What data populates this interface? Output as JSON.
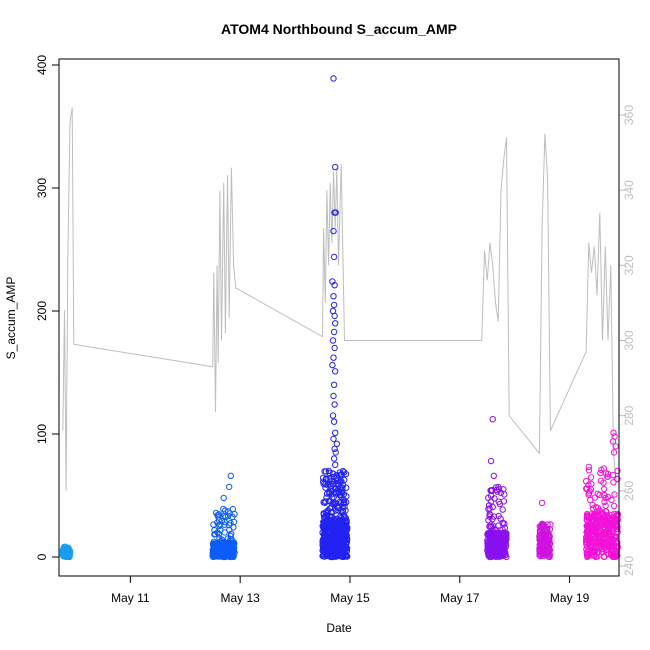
{
  "chart_data": {
    "type": "scatter",
    "title": "ATOM4 Northbound S_accum_AMP",
    "xlabel": "Date",
    "ylabel": "S_accum_AMP",
    "x_unit": "days in May",
    "xlim": [
      9.7,
      19.9
    ],
    "ylim": [
      0,
      400
    ],
    "y2lim": [
      240,
      360
    ],
    "x_ticks": [
      {
        "value": 11,
        "label": "May 11"
      },
      {
        "value": 13,
        "label": "May 13"
      },
      {
        "value": 15,
        "label": "May 15"
      },
      {
        "value": 17,
        "label": "May 17"
      },
      {
        "value": 19,
        "label": "May 19"
      }
    ],
    "y_ticks": [
      0,
      100,
      200,
      300,
      400
    ],
    "y2_ticks": [
      240,
      260,
      280,
      300,
      320,
      340,
      360
    ],
    "grid": false,
    "legend": "none",
    "marker": "open-circle",
    "secondary_line_color": "#bebebe",
    "scatter_clusters": [
      {
        "x_start": 9.77,
        "x_end": 9.9,
        "y_typical_max": 6,
        "y_max": 9,
        "color": "#1a9cf0",
        "density": 140,
        "outliers": []
      },
      {
        "x_start": 12.5,
        "x_end": 12.9,
        "y_typical_max": 12,
        "y_max": 40,
        "color": "#0d5cf7",
        "density": 300,
        "outliers": [
          [
            12.7,
            48
          ],
          [
            12.8,
            57
          ],
          [
            12.83,
            66
          ]
        ]
      },
      {
        "x_start": 14.5,
        "x_end": 14.95,
        "y_typical_max": 30,
        "y_max": 70,
        "color": "#2222f2",
        "density": 600,
        "outliers": [
          [
            14.7,
            389
          ],
          [
            14.73,
            317
          ],
          [
            14.74,
            280
          ],
          [
            14.72,
            280
          ],
          [
            14.7,
            265
          ],
          [
            14.71,
            244
          ],
          [
            14.68,
            224
          ],
          [
            14.72,
            221
          ],
          [
            14.7,
            212
          ],
          [
            14.71,
            205
          ],
          [
            14.69,
            200
          ],
          [
            14.72,
            196
          ],
          [
            14.73,
            190
          ],
          [
            14.71,
            183
          ],
          [
            14.69,
            176
          ],
          [
            14.72,
            170
          ],
          [
            14.7,
            162
          ],
          [
            14.68,
            156
          ],
          [
            14.73,
            151
          ],
          [
            14.71,
            140
          ],
          [
            14.7,
            131
          ],
          [
            14.72,
            124
          ],
          [
            14.69,
            115
          ],
          [
            14.71,
            110
          ],
          [
            14.73,
            101
          ],
          [
            14.7,
            96
          ],
          [
            14.72,
            88
          ],
          [
            14.71,
            80
          ],
          [
            14.73,
            75
          ],
          [
            14.74,
            85
          ],
          [
            14.76,
            92
          ],
          [
            14.69,
            68
          ]
        ]
      },
      {
        "x_start": 17.5,
        "x_end": 17.85,
        "y_typical_max": 20,
        "y_max": 58,
        "color": "#8a10f0",
        "density": 340,
        "outliers": [
          [
            17.6,
            112
          ],
          [
            17.57,
            78
          ],
          [
            17.62,
            66
          ]
        ]
      },
      {
        "x_start": 18.45,
        "x_end": 18.65,
        "y_typical_max": 20,
        "y_max": 28,
        "color": "#d012e0",
        "density": 140,
        "outliers": [
          [
            18.5,
            44
          ]
        ]
      },
      {
        "x_start": 19.3,
        "x_end": 19.88,
        "y_typical_max": 35,
        "y_max": 75,
        "color": "#f212d8",
        "density": 380,
        "outliers": [
          [
            19.8,
            101
          ],
          [
            19.82,
            98
          ],
          [
            19.79,
            94
          ],
          [
            19.84,
            90
          ],
          [
            19.81,
            85
          ]
        ]
      }
    ],
    "secondary_line": [
      [
        9.77,
        276
      ],
      [
        9.8,
        308
      ],
      [
        9.83,
        260
      ],
      [
        9.86,
        322
      ],
      [
        9.9,
        358
      ],
      [
        9.94,
        362
      ],
      [
        9.97,
        299
      ],
      [
        12.5,
        293
      ],
      [
        12.52,
        318
      ],
      [
        12.55,
        281
      ],
      [
        12.58,
        320
      ],
      [
        12.6,
        294
      ],
      [
        12.63,
        340
      ],
      [
        12.66,
        300
      ],
      [
        12.7,
        342
      ],
      [
        12.73,
        302
      ],
      [
        12.77,
        344
      ],
      [
        12.8,
        306
      ],
      [
        12.84,
        346
      ],
      [
        12.88,
        320
      ],
      [
        12.92,
        314
      ],
      [
        14.5,
        301
      ],
      [
        14.52,
        330
      ],
      [
        14.55,
        310
      ],
      [
        14.58,
        340
      ],
      [
        14.61,
        320
      ],
      [
        14.64,
        342
      ],
      [
        14.67,
        326
      ],
      [
        14.7,
        345
      ],
      [
        14.73,
        330
      ],
      [
        14.76,
        346
      ],
      [
        14.79,
        320
      ],
      [
        14.84,
        347
      ],
      [
        14.9,
        300
      ],
      [
        17.4,
        300
      ],
      [
        17.45,
        324
      ],
      [
        17.5,
        316
      ],
      [
        17.55,
        326
      ],
      [
        17.6,
        320
      ],
      [
        17.65,
        310
      ],
      [
        17.7,
        305
      ],
      [
        17.75,
        340
      ],
      [
        17.8,
        348
      ],
      [
        17.85,
        354
      ],
      [
        17.9,
        280
      ],
      [
        18.45,
        270
      ],
      [
        18.5,
        330
      ],
      [
        18.55,
        355
      ],
      [
        18.6,
        343
      ],
      [
        18.65,
        276
      ],
      [
        19.3,
        297
      ],
      [
        19.35,
        326
      ],
      [
        19.4,
        318
      ],
      [
        19.45,
        325
      ],
      [
        19.5,
        312
      ],
      [
        19.55,
        334
      ],
      [
        19.6,
        300
      ],
      [
        19.65,
        325
      ],
      [
        19.7,
        300
      ],
      [
        19.75,
        320
      ],
      [
        19.8,
        270
      ],
      [
        19.85,
        262
      ]
    ]
  }
}
